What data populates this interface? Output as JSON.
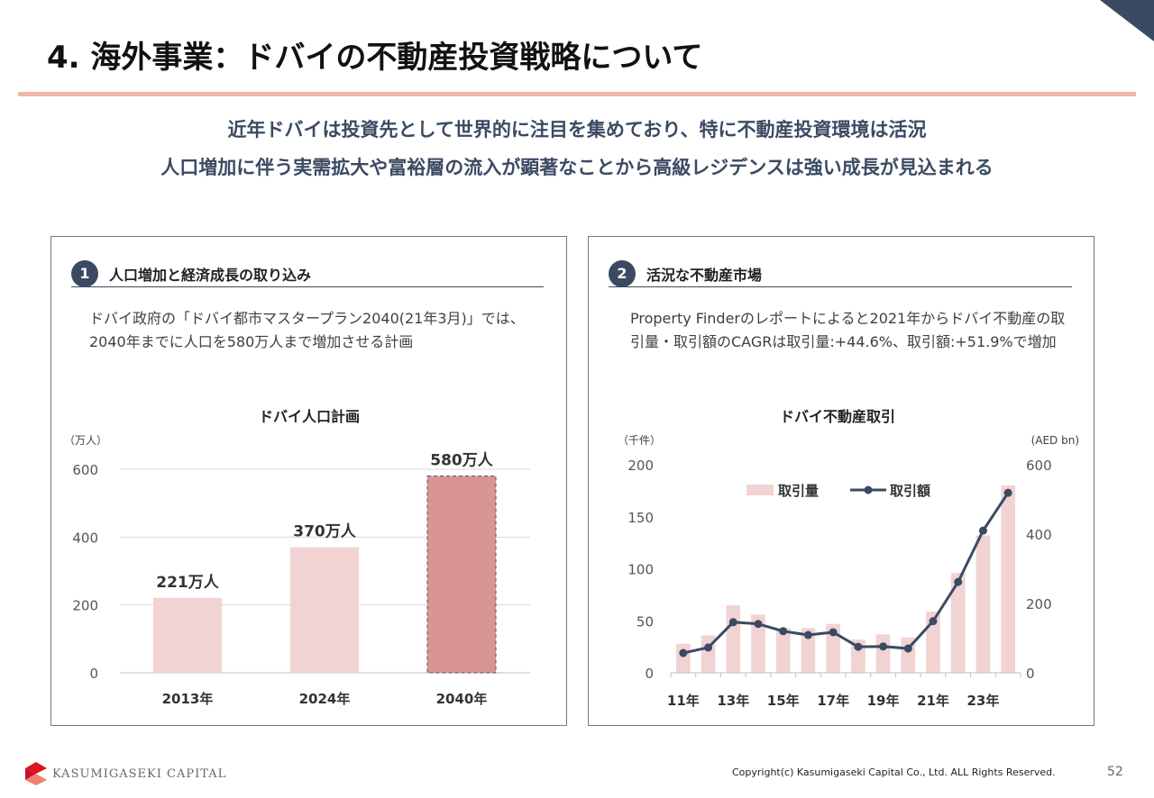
{
  "header": {
    "title": "4. 海外事業：ドバイの不動産投資戦略について"
  },
  "lead": [
    "近年ドバイは投資先として世界的に注目を集めており、特に不動産投資環境は活況",
    "人口増加に伴う実需拡大や富裕層の流入が顕著なことから高級レジデンスは強い成長が見込まれる"
  ],
  "colors": {
    "accent": "#f2b8aa",
    "navy": "#3b4a63",
    "bar_light": "#f2d3d3",
    "bar_dark": "#d99594"
  },
  "left": {
    "num": "1",
    "heading": "人口増加と経済成長の取り込み",
    "desc": "ドバイ政府の「ドバイ都市マスタープラン2040(21年3月)」では、2040年までに人口を580万人まで増加させる計画"
  },
  "right": {
    "num": "2",
    "heading": "活況な不動産市場",
    "desc": "Property Finderのレポートによると2021年からドバイ不動産の取引量・取引額のCAGRは取引量:+44.6%、取引額:+51.9%で増加"
  },
  "chart_data": [
    {
      "type": "bar",
      "title": "ドバイ人口計画",
      "ylabel": "（万人）",
      "categories": [
        "2013年",
        "2024年",
        "2040年"
      ],
      "values": [
        221,
        370,
        580
      ],
      "data_labels": [
        "221万人",
        "370万人",
        "580万人"
      ],
      "ylim": [
        0,
        600
      ],
      "yticks": [
        "0",
        "200",
        "400",
        "600"
      ],
      "grid": true,
      "highlight": "2040年"
    },
    {
      "type": "bar+line",
      "title": "ドバイ不動産取引",
      "ylabel_left": "（千件）",
      "ylabel_right": "(AED bn)",
      "x": [
        "11年",
        "12年",
        "13年",
        "14年",
        "15年",
        "16年",
        "17年",
        "18年",
        "19年",
        "20年",
        "21年",
        "22年",
        "23年",
        "24年"
      ],
      "xtick_labels": [
        "11年",
        "",
        "13年",
        "",
        "15年",
        "",
        "17年",
        "",
        "19年",
        "",
        "21年",
        "",
        "23年",
        ""
      ],
      "series": [
        {
          "name": "取引量",
          "type": "bar",
          "axis": "left",
          "values": [
            28,
            36,
            65,
            56,
            43,
            43,
            47,
            32,
            37,
            34,
            59,
            96,
            132,
            180
          ]
        },
        {
          "name": "取引額",
          "type": "line",
          "axis": "right",
          "values": [
            57,
            73,
            146,
            141,
            120,
            109,
            117,
            75,
            76,
            70,
            149,
            262,
            410,
            519
          ]
        }
      ],
      "ylim_left": [
        0,
        200
      ],
      "ylim_right": [
        0,
        600
      ],
      "yticks_left": [
        "0",
        "50",
        "100",
        "150",
        "200"
      ],
      "yticks_right": [
        "0",
        "200",
        "400",
        "600"
      ],
      "legend": "top-center",
      "grid": false
    }
  ],
  "footer": {
    "logo": "KASUMIGASEKI CAPITAL",
    "copyright": "Copyright(c) Kasumigaseki Capital Co., Ltd. ALL Rights Reserved.",
    "page": "52"
  }
}
